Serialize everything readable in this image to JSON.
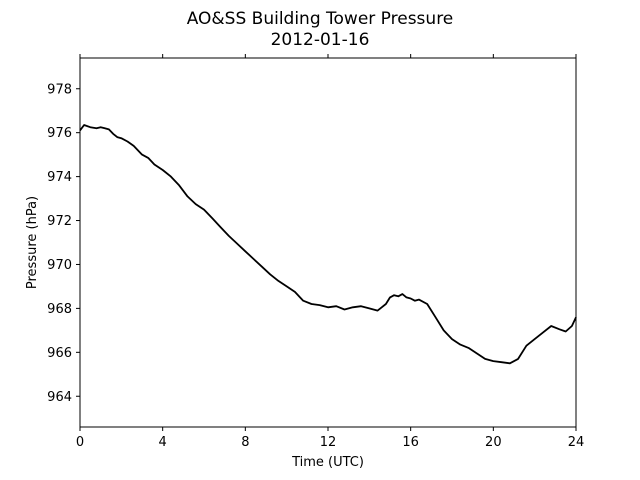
{
  "chart_data": {
    "type": "line",
    "title": "AO&SS Building Tower Pressure",
    "subtitle": "2012-01-16",
    "xlabel": "Time (UTC)",
    "ylabel": "Pressure (hPa)",
    "xlim": [
      0,
      24
    ],
    "ylim": [
      962.6,
      979.4
    ],
    "xticks": [
      0,
      4,
      8,
      12,
      16,
      20,
      24
    ],
    "yticks": [
      964,
      966,
      968,
      970,
      972,
      974,
      976,
      978
    ],
    "grid": false,
    "legend": "none",
    "line_color": "#000000",
    "series": [
      {
        "x": [
          0,
          0.2,
          0.5,
          0.8,
          1.0,
          1.2,
          1.4,
          1.6,
          1.8,
          2.0,
          2.3,
          2.6,
          3.0,
          3.3,
          3.6,
          4.0,
          4.4,
          4.8,
          5.2,
          5.6,
          6.0,
          6.4,
          6.8,
          7.2,
          7.6,
          8.0,
          8.4,
          8.8,
          9.2,
          9.6,
          10.0,
          10.4,
          10.8,
          11.2,
          11.6,
          12.0,
          12.4,
          12.8,
          13.2,
          13.6,
          14.0,
          14.4,
          14.8,
          15.0,
          15.2,
          15.4,
          15.6,
          15.8,
          16.0,
          16.2,
          16.4,
          16.8,
          17.2,
          17.6,
          18.0,
          18.4,
          18.8,
          19.2,
          19.6,
          20.0,
          20.4,
          20.8,
          21.2,
          21.6,
          22.0,
          22.4,
          22.8,
          23.2,
          23.5,
          23.8,
          24.0
        ],
        "y": [
          976.1,
          976.35,
          976.25,
          976.2,
          976.25,
          976.2,
          976.15,
          975.95,
          975.8,
          975.75,
          975.6,
          975.4,
          975.0,
          974.85,
          974.55,
          974.3,
          974.0,
          973.6,
          973.1,
          972.75,
          972.5,
          972.1,
          971.7,
          971.3,
          970.95,
          970.6,
          970.25,
          969.9,
          969.55,
          969.25,
          969.0,
          968.75,
          968.35,
          968.2,
          968.15,
          968.05,
          968.1,
          967.95,
          968.05,
          968.1,
          968.0,
          967.9,
          968.2,
          968.5,
          968.6,
          968.55,
          968.65,
          968.5,
          968.45,
          968.35,
          968.4,
          968.2,
          967.6,
          967.0,
          966.6,
          966.35,
          966.2,
          965.95,
          965.7,
          965.6,
          965.55,
          965.5,
          965.7,
          966.3,
          966.6,
          966.9,
          967.2,
          967.05,
          966.95,
          967.2,
          967.6
        ]
      }
    ]
  }
}
